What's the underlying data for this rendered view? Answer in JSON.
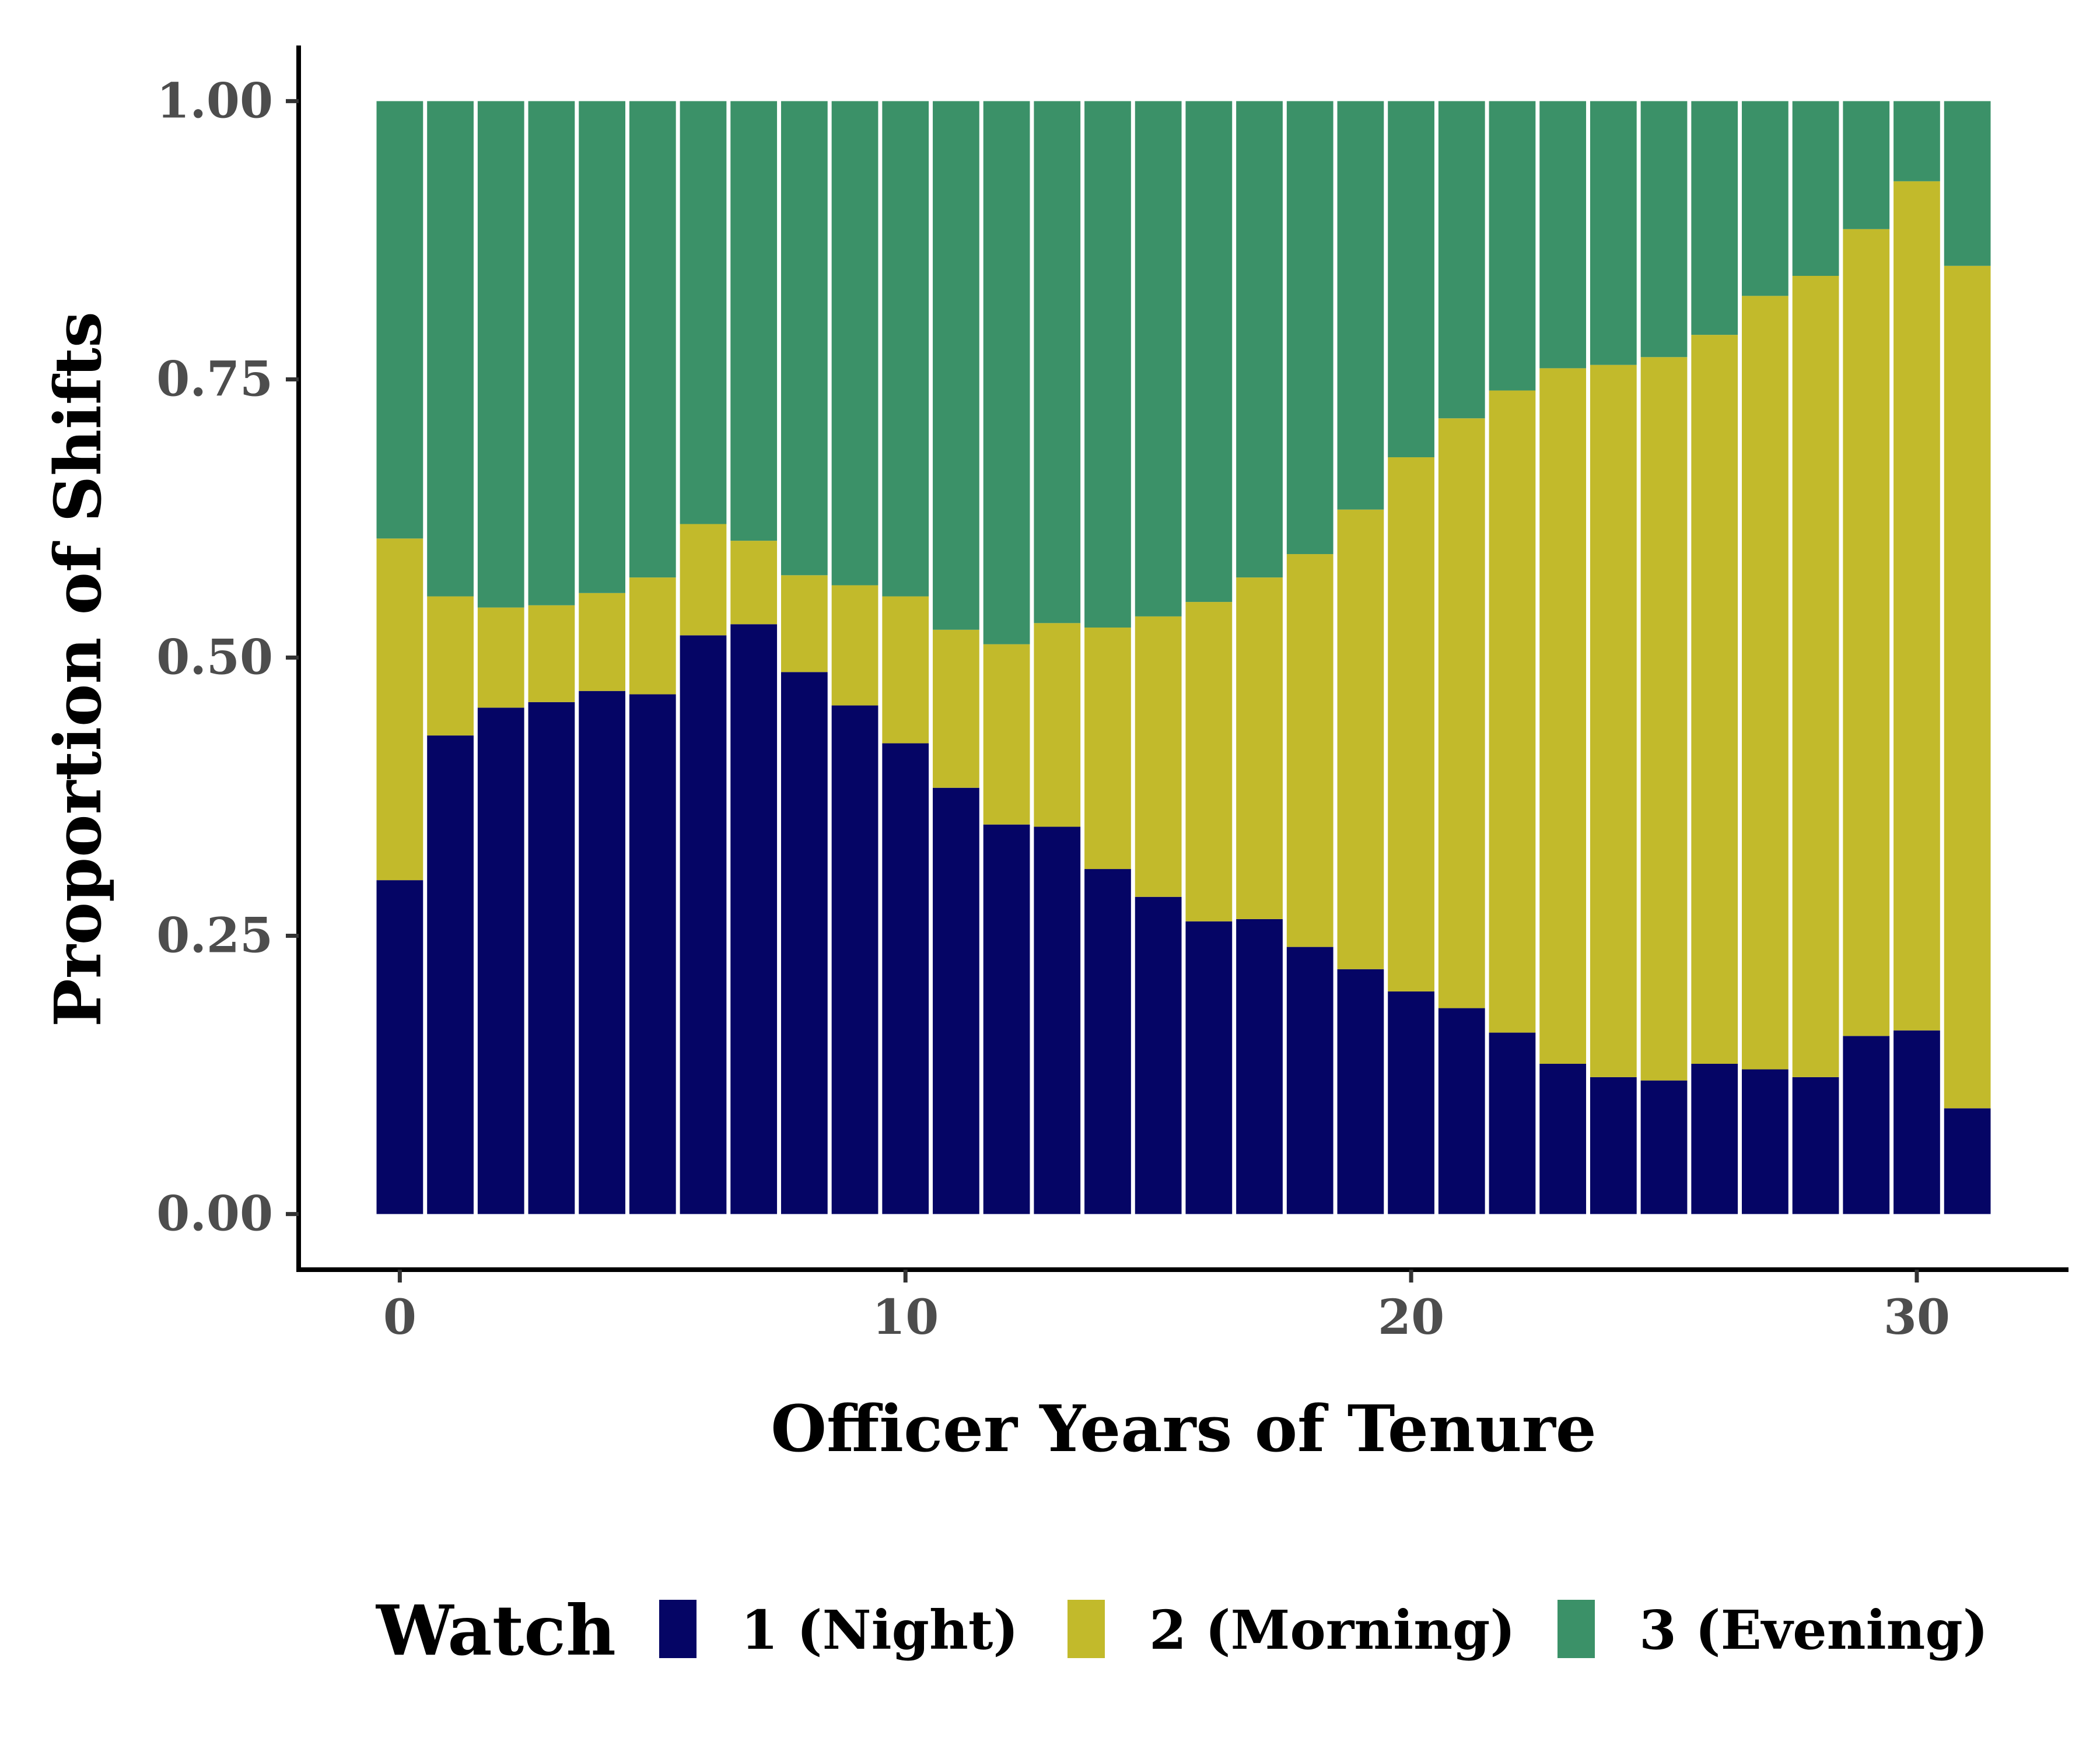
{
  "chart_data": {
    "type": "bar",
    "stacked": true,
    "normalized": true,
    "xlabel": "Officer Years of Tenure",
    "ylabel": "Proportion of Shifts",
    "xlim": [
      -2,
      33
    ],
    "ylim": [
      -0.05,
      1.05
    ],
    "x_ticks": [
      0,
      10,
      20,
      30
    ],
    "x_tick_labels": [
      "0",
      "10",
      "20",
      "30"
    ],
    "y_ticks": [
      0,
      0.25,
      0.5,
      0.75,
      1.0
    ],
    "y_tick_labels": [
      "0.00",
      "0.25",
      "0.50",
      "0.75",
      "1.00"
    ],
    "grid": false,
    "legend_position": "bottom",
    "legend_title": "Watch",
    "x": [
      0,
      1,
      2,
      3,
      4,
      5,
      6,
      7,
      8,
      9,
      10,
      11,
      12,
      13,
      14,
      15,
      16,
      17,
      18,
      19,
      20,
      21,
      22,
      23,
      24,
      25,
      26,
      27,
      28,
      29,
      30,
      31
    ],
    "series": [
      {
        "name": "1 (Night)",
        "color": "#050565",
        "values": [
          0.3,
          0.43,
          0.455,
          0.46,
          0.47,
          0.467,
          0.52,
          0.53,
          0.487,
          0.457,
          0.423,
          0.383,
          0.35,
          0.348,
          0.31,
          0.285,
          0.263,
          0.265,
          0.24,
          0.22,
          0.2,
          0.185,
          0.163,
          0.135,
          0.123,
          0.12,
          0.135,
          0.13,
          0.123,
          0.16,
          0.165,
          0.095
        ]
      },
      {
        "name": "2 (Morning)",
        "color": "#c2ba2b",
        "values": [
          0.307,
          0.125,
          0.09,
          0.087,
          0.088,
          0.105,
          0.1,
          0.075,
          0.087,
          0.108,
          0.132,
          0.142,
          0.162,
          0.183,
          0.217,
          0.252,
          0.287,
          0.307,
          0.353,
          0.413,
          0.48,
          0.53,
          0.577,
          0.625,
          0.64,
          0.65,
          0.655,
          0.695,
          0.72,
          0.725,
          0.763,
          0.757
        ]
      },
      {
        "name": "3 (Evening)",
        "color": "#3b9168",
        "values": [
          0.393,
          0.445,
          0.455,
          0.453,
          0.442,
          0.428,
          0.38,
          0.395,
          0.426,
          0.435,
          0.445,
          0.475,
          0.488,
          0.469,
          0.473,
          0.463,
          0.45,
          0.428,
          0.407,
          0.367,
          0.32,
          0.285,
          0.26,
          0.24,
          0.237,
          0.23,
          0.21,
          0.175,
          0.157,
          0.115,
          0.072,
          0.148
        ]
      }
    ]
  }
}
